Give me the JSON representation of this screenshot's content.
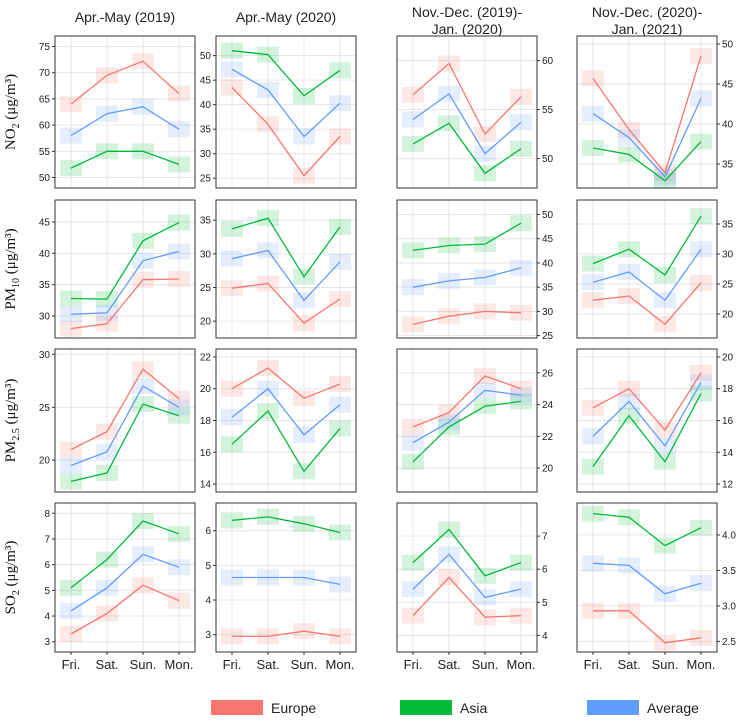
{
  "chart_data": {
    "type": "line",
    "column_titles": [
      {
        "line1": "Apr.-May (2019)",
        "line2": ""
      },
      {
        "line1": "Apr.-May (2020)",
        "line2": ""
      },
      {
        "line1": "Nov.-Dec. (2019)-",
        "line2": "Jan. (2020)"
      },
      {
        "line1": "Nov.-Dec. (2020)-",
        "line2": "Jan. (2021)"
      }
    ],
    "categories": [
      "Fri.",
      "Sat.",
      "Sun.",
      "Mon."
    ],
    "series_names": [
      "Europe",
      "Asia",
      "Average"
    ],
    "colors": {
      "Europe": "#f8766d",
      "Asia": "#00ba38",
      "Average": "#619cff"
    },
    "legend": {
      "position": "bottom",
      "entries": [
        "Europe",
        "Asia",
        "Average"
      ]
    },
    "rows": [
      {
        "pollutant": "NO2",
        "ylabel": {
          "main": "NO",
          "sub": "2",
          "unit": " (μg/m³)"
        },
        "panels": [
          {
            "ylim": [
              48,
              77
            ],
            "ticks": [
              50,
              55,
              60,
              65,
              70,
              75
            ],
            "series": {
              "Europe": [
                64,
                69.5,
                72.2,
                66
              ],
              "Asia": [
                51.8,
                55,
                55,
                52.5
              ],
              "Average": [
                58,
                62.2,
                63.5,
                59.2
              ]
            }
          },
          {
            "ylim": [
              23,
              54
            ],
            "ticks": [
              25,
              30,
              35,
              40,
              45,
              50
            ],
            "series": {
              "Europe": [
                43.5,
                36,
                25.5,
                33.5
              ],
              "Asia": [
                51,
                50.2,
                41.8,
                47
              ],
              "Average": [
                47.2,
                43,
                33.5,
                40.3
              ]
            }
          },
          {
            "ylim": [
              47,
              62.5
            ],
            "ticks": [
              50,
              55,
              60
            ],
            "series": {
              "Europe": [
                56.5,
                59.7,
                52.5,
                56.3
              ],
              "Asia": [
                51.5,
                53.6,
                48.5,
                51
              ],
              "Average": [
                54,
                56.6,
                50.5,
                53.7
              ]
            }
          },
          {
            "ylim": [
              32,
              51
            ],
            "ticks": [
              35,
              40,
              45,
              50
            ],
            "series": {
              "Europe": [
                45.7,
                39.3,
                33.9,
                48.5
              ],
              "Asia": [
                37,
                36.2,
                32.9,
                37.8
              ],
              "Average": [
                41.3,
                38.3,
                33.4,
                43.2
              ]
            }
          }
        ]
      },
      {
        "pollutant": "PM10",
        "ylabel": {
          "main": "PM",
          "sub": "10",
          "unit": " (μg/m³)"
        },
        "panels": [
          {
            "ylim": [
              26.5,
              48.5
            ],
            "ticks": [
              30,
              35,
              40,
              45
            ],
            "series": {
              "Europe": [
                28,
                28.8,
                35.8,
                35.9
              ],
              "Asia": [
                32.8,
                32.7,
                42,
                44.9
              ],
              "Average": [
                30.3,
                30.5,
                38.8,
                40.3
              ]
            }
          },
          {
            "ylim": [
              17.5,
              38
            ],
            "ticks": [
              20,
              25,
              30,
              35
            ],
            "series": {
              "Europe": [
                24.9,
                25.6,
                19.7,
                23.3
              ],
              "Asia": [
                33.7,
                35.3,
                26.6,
                34
              ],
              "Average": [
                29.3,
                30.5,
                23.1,
                28.8
              ]
            }
          },
          {
            "ylim": [
              24.5,
              53
            ],
            "ticks": [
              25,
              30,
              35,
              40,
              45,
              50
            ],
            "series": {
              "Europe": [
                27.3,
                29,
                30,
                29.7
              ],
              "Asia": [
                42.6,
                43.6,
                43.9,
                48.2
              ],
              "Average": [
                35,
                36.3,
                37,
                39
              ]
            }
          },
          {
            "ylim": [
              16,
              39
            ],
            "ticks": [
              20,
              25,
              30,
              35
            ],
            "series": {
              "Europe": [
                22.3,
                23,
                18.3,
                25.2
              ],
              "Asia": [
                28.4,
                30.8,
                26.5,
                36.3
              ],
              "Average": [
                25.3,
                27,
                22.3,
                30.8
              ]
            }
          }
        ]
      },
      {
        "pollutant": "PM2.5",
        "ylabel": {
          "main": "PM",
          "sub": "2.5",
          "unit": " (μg/m³)"
        },
        "panels": [
          {
            "ylim": [
              17,
              30.5
            ],
            "ticks": [
              20,
              25,
              30
            ],
            "series": {
              "Europe": [
                21,
                22.7,
                28.6,
                25.8
              ],
              "Asia": [
                18,
                18.8,
                25.3,
                24.2
              ],
              "Average": [
                19.5,
                20.8,
                27,
                25
              ]
            }
          },
          {
            "ylim": [
              13.5,
              22.5
            ],
            "ticks": [
              14,
              16,
              18,
              20,
              22
            ],
            "series": {
              "Europe": [
                20,
                21.3,
                19.4,
                20.3
              ],
              "Asia": [
                16.5,
                18.6,
                14.8,
                17.5
              ],
              "Average": [
                18.2,
                20,
                17.1,
                19
              ]
            }
          },
          {
            "ylim": [
              18.5,
              27.5
            ],
            "ticks": [
              20,
              22,
              24,
              26
            ],
            "series": {
              "Europe": [
                22.6,
                23.5,
                25.8,
                25
              ],
              "Asia": [
                20.4,
                22.6,
                23.9,
                24.2
              ],
              "Average": [
                21.6,
                22.9,
                24.9,
                24.6
              ]
            }
          },
          {
            "ylim": [
              11.5,
              20.5
            ],
            "ticks": [
              12,
              14,
              16,
              18,
              20
            ],
            "series": {
              "Europe": [
                16.8,
                18,
                15.4,
                19
              ],
              "Asia": [
                13.1,
                16.3,
                13.4,
                17.7
              ],
              "Average": [
                15,
                17.2,
                14.4,
                18.4
              ]
            }
          }
        ]
      },
      {
        "pollutant": "SO2",
        "ylabel": {
          "main": "SO",
          "sub": "2",
          "unit": " (μg/m³)"
        },
        "panels": [
          {
            "ylim": [
              2.6,
              8.4
            ],
            "ticks": [
              3,
              4,
              5,
              6,
              7,
              8
            ],
            "series": {
              "Europe": [
                3.3,
                4.1,
                5.2,
                4.6
              ],
              "Asia": [
                5.1,
                6.2,
                7.7,
                7.2
              ],
              "Average": [
                4.2,
                5.1,
                6.4,
                5.9
              ]
            }
          },
          {
            "ylim": [
              2.5,
              6.8
            ],
            "ticks": [
              3,
              4,
              5,
              6
            ],
            "series": {
              "Europe": [
                2.95,
                2.95,
                3.1,
                2.95
              ],
              "Asia": [
                6.3,
                6.4,
                6.2,
                5.95
              ],
              "Average": [
                4.65,
                4.65,
                4.65,
                4.45
              ]
            }
          },
          {
            "ylim": [
              3.5,
              8
            ],
            "ticks": [
              4,
              5,
              6,
              7
            ],
            "series": {
              "Europe": [
                4.6,
                5.75,
                4.55,
                4.6
              ],
              "Asia": [
                6.2,
                7.2,
                5.8,
                6.2
              ],
              "Average": [
                5.4,
                6.45,
                5.15,
                5.4
              ]
            }
          },
          {
            "ylim": [
              2.35,
              4.45
            ],
            "ticks": [
              2.5,
              3.0,
              3.5,
              4.0
            ],
            "series": {
              "Europe": [
                2.93,
                2.93,
                2.48,
                2.55
              ],
              "Asia": [
                4.3,
                4.25,
                3.85,
                4.1
              ],
              "Average": [
                3.6,
                3.57,
                3.17,
                3.32
              ]
            }
          }
        ]
      }
    ]
  }
}
